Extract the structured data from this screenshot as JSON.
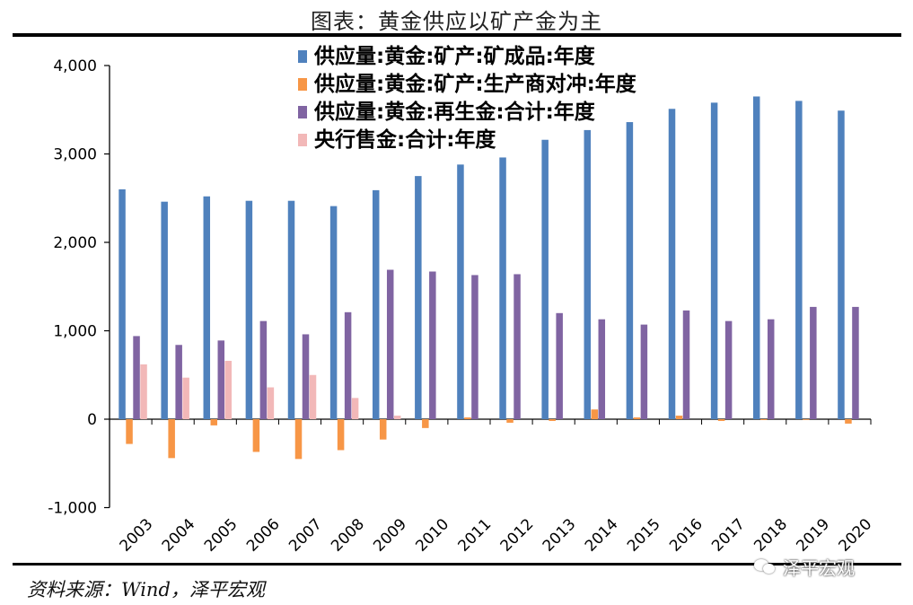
{
  "page": {
    "title": "图表：黄金供应以矿产金为主",
    "source": "资料来源：Wind，泽平宏观",
    "watermark": "泽平宏观"
  },
  "chart_data": {
    "type": "bar",
    "categories": [
      "2003",
      "2004",
      "2005",
      "2006",
      "2007",
      "2008",
      "2009",
      "2010",
      "2011",
      "2012",
      "2013",
      "2014",
      "2015",
      "2016",
      "2017",
      "2018",
      "2019",
      "2020"
    ],
    "series": [
      {
        "name": "供应量:黄金:矿产:矿成品:年度",
        "color": "#4f81bd",
        "values": [
          2600,
          2460,
          2520,
          2470,
          2470,
          2410,
          2590,
          2750,
          2880,
          2960,
          3160,
          3270,
          3360,
          3510,
          3580,
          3650,
          3600,
          3490
        ]
      },
      {
        "name": "供应量:黄金:矿产:生产商对冲:年度",
        "color": "#f79646",
        "values": [
          -280,
          -440,
          -70,
          -370,
          -450,
          -350,
          -230,
          -100,
          20,
          -40,
          -20,
          110,
          20,
          40,
          -20,
          -10,
          0,
          -50
        ]
      },
      {
        "name": "供应量:黄金:再生金:合计:年度",
        "color": "#8064a2",
        "values": [
          940,
          840,
          890,
          1110,
          960,
          1210,
          1690,
          1670,
          1630,
          1640,
          1200,
          1130,
          1070,
          1230,
          1110,
          1130,
          1270,
          1270
        ]
      },
      {
        "name": "央行售金:合计:年度",
        "color": "#f2b8b8",
        "values": [
          620,
          470,
          660,
          360,
          500,
          240,
          40,
          null,
          null,
          null,
          null,
          null,
          null,
          null,
          null,
          null,
          null,
          null
        ]
      }
    ],
    "ylim": [
      -1000,
      4000
    ],
    "yticks": [
      -1000,
      0,
      1000,
      2000,
      3000,
      4000
    ],
    "ytick_labels": [
      "-1,000",
      "0",
      "1,000",
      "2,000",
      "3,000",
      "4,000"
    ],
    "xlabel": "",
    "ylabel": "",
    "grid": false,
    "legend_position": "top-left"
  }
}
